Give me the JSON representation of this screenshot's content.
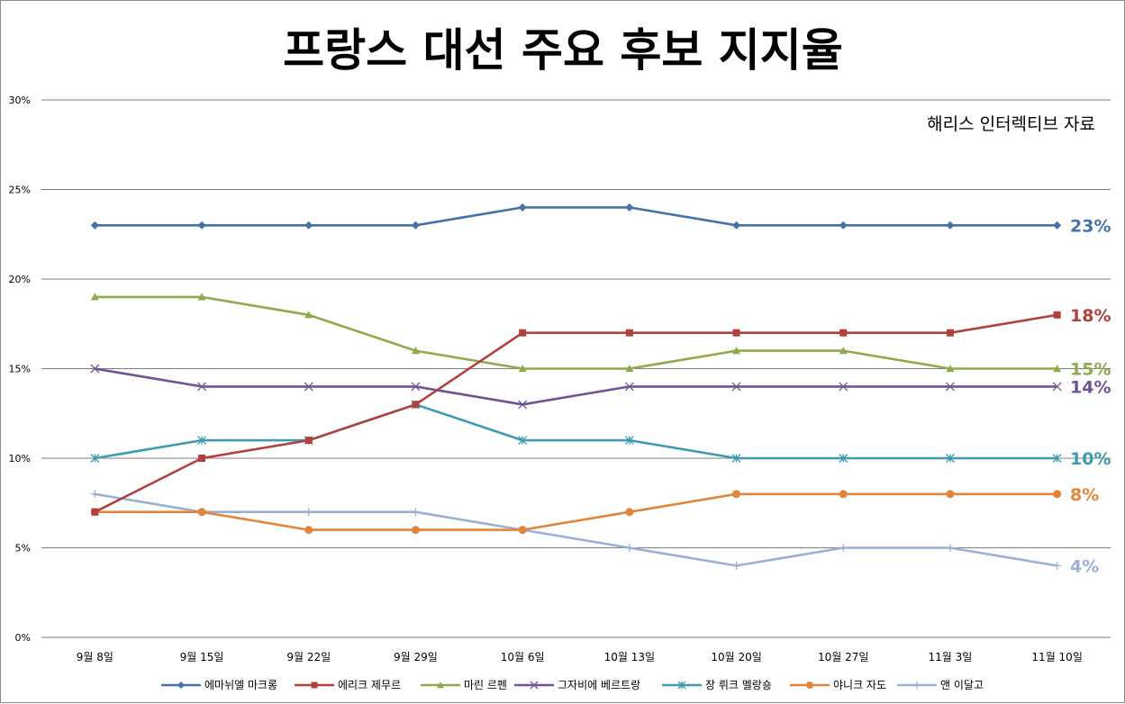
{
  "chart_data": {
    "type": "line",
    "title": "프랑스 대선 주요 후보 지지율",
    "source_note": "해리스 인터렉티브 자료",
    "categories": [
      "9월 8일",
      "9월 15일",
      "9월 22일",
      "9월 29일",
      "10월 6일",
      "10월 13일",
      "10월 20일",
      "10월 27일",
      "11월 3일",
      "11월 10일"
    ],
    "ylim": [
      0,
      30
    ],
    "y_ticks": [
      "0%",
      "5%",
      "10%",
      "15%",
      "20%",
      "25%",
      "30%"
    ],
    "grid": true,
    "legend_position": "bottom",
    "series": [
      {
        "name": "에마뉘엘 마크롱",
        "color": "#4472a8",
        "marker": "diamond",
        "values": [
          23,
          23,
          23,
          23,
          24,
          24,
          23,
          23,
          23,
          23
        ],
        "end_label": "23%"
      },
      {
        "name": "에리크 제무르",
        "color": "#b0413e",
        "marker": "square",
        "values": [
          7,
          10,
          11,
          13,
          17,
          17,
          17,
          17,
          17,
          18
        ],
        "end_label": "18%"
      },
      {
        "name": "마린 르펜",
        "color": "#8faa4a",
        "marker": "triangle",
        "values": [
          19,
          19,
          18,
          16,
          15,
          15,
          16,
          16,
          15,
          15
        ],
        "end_label": "15%"
      },
      {
        "name": "그자비에 베르트랑",
        "color": "#6e5493",
        "marker": "x",
        "values": [
          15,
          14,
          14,
          14,
          13,
          14,
          14,
          14,
          14,
          14
        ],
        "end_label": "14%"
      },
      {
        "name": "장 뤼크 멜랑숑",
        "color": "#3e9bb0",
        "marker": "asterisk",
        "values": [
          10,
          11,
          11,
          13,
          11,
          11,
          10,
          10,
          10,
          10
        ],
        "end_label": "10%"
      },
      {
        "name": "야니크 자도",
        "color": "#e2853a",
        "marker": "circle",
        "values": [
          7,
          7,
          6,
          6,
          6,
          7,
          8,
          8,
          8,
          8
        ],
        "end_label": "8%"
      },
      {
        "name": "앤 이달고",
        "color": "#9bb0d4",
        "marker": "plus",
        "values": [
          8,
          7,
          7,
          7,
          6,
          5,
          4,
          5,
          5,
          4
        ],
        "end_label": "4%"
      }
    ]
  }
}
